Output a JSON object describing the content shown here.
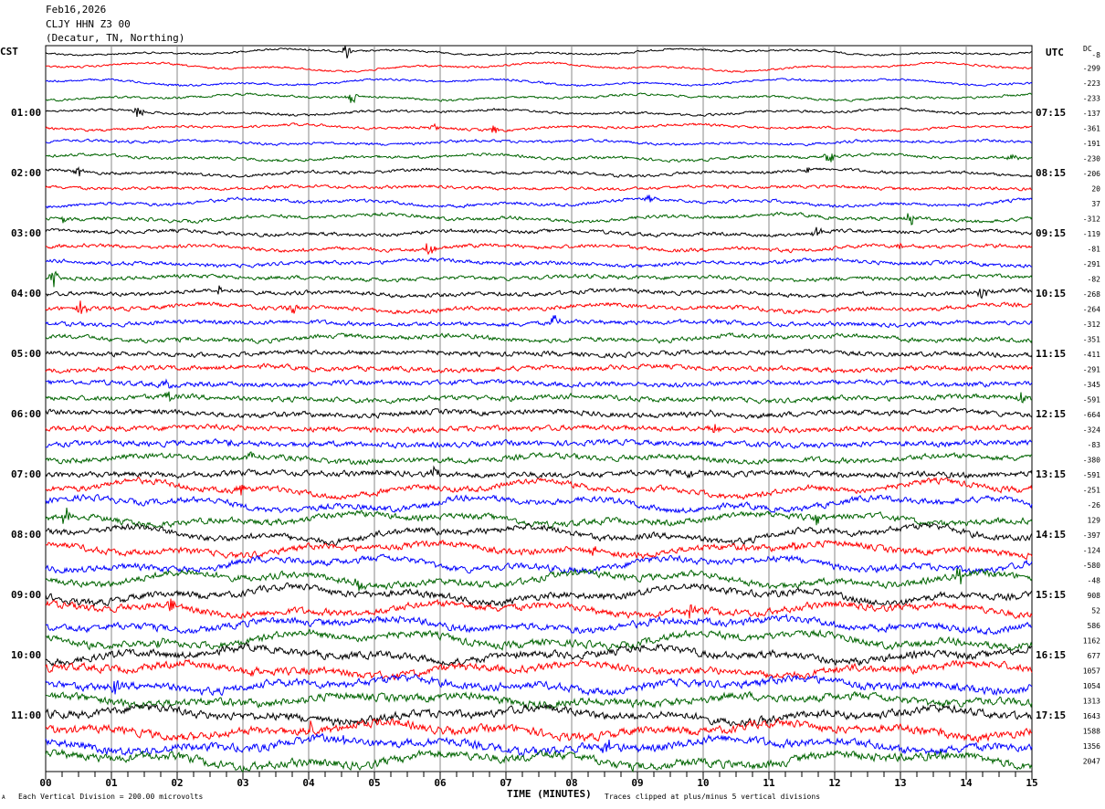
{
  "header": {
    "date": "Feb16,2026",
    "station": "CLJY HHN Z3 00",
    "location": "(Decatur, TN, Northing)"
  },
  "left_zone": "CST",
  "right_zone": "UTC",
  "dc_label": "DC",
  "footer": {
    "scale_note": "Each Vertical Division =  200.00 microvolts",
    "clip_note": "Traces clipped at plus/minus 5 vertical divisions",
    "corner_mark": "A"
  },
  "chart_data": {
    "type": "line",
    "xlabel": "TIME (MINUTES)",
    "xlim": [
      0,
      15
    ],
    "x_ticks": [
      "00",
      "01",
      "02",
      "03",
      "04",
      "05",
      "06",
      "07",
      "08",
      "09",
      "10",
      "11",
      "12",
      "13",
      "14",
      "15"
    ],
    "left_hour_labels": [
      "01:00",
      "02:00",
      "03:00",
      "04:00",
      "05:00",
      "06:00",
      "07:00",
      "08:00",
      "09:00",
      "10:00",
      "11:00"
    ],
    "right_hour_labels": [
      "07:15",
      "08:15",
      "09:15",
      "10:15",
      "11:15",
      "12:15",
      "13:15",
      "14:15",
      "15:15",
      "16:15",
      "17:15"
    ],
    "trace_colors": [
      "#000000",
      "#ff0000",
      "#0000ff",
      "#006400"
    ],
    "traces_per_hour": 4,
    "trace_count": 48,
    "minutes_per_trace": 15,
    "grid": true,
    "dc_offsets": [
      "-8",
      "-299",
      "-223",
      "-233",
      "-137",
      "-361",
      "-191",
      "-230",
      "-206",
      "20",
      "37",
      "-312",
      "-119",
      "-81",
      "-291",
      "-82",
      "-268",
      "-264",
      "-312",
      "-351",
      "-411",
      "-291",
      "-345",
      "-591",
      "-664",
      "-324",
      "-83",
      "-380",
      "-591",
      "-251",
      "-26",
      "129",
      "-397",
      "-124",
      "-580",
      "-48",
      "908",
      "52",
      "586",
      "1162",
      "677",
      "1057",
      "1054",
      "1313",
      "1643",
      "1588",
      "1356",
      "2047"
    ]
  }
}
